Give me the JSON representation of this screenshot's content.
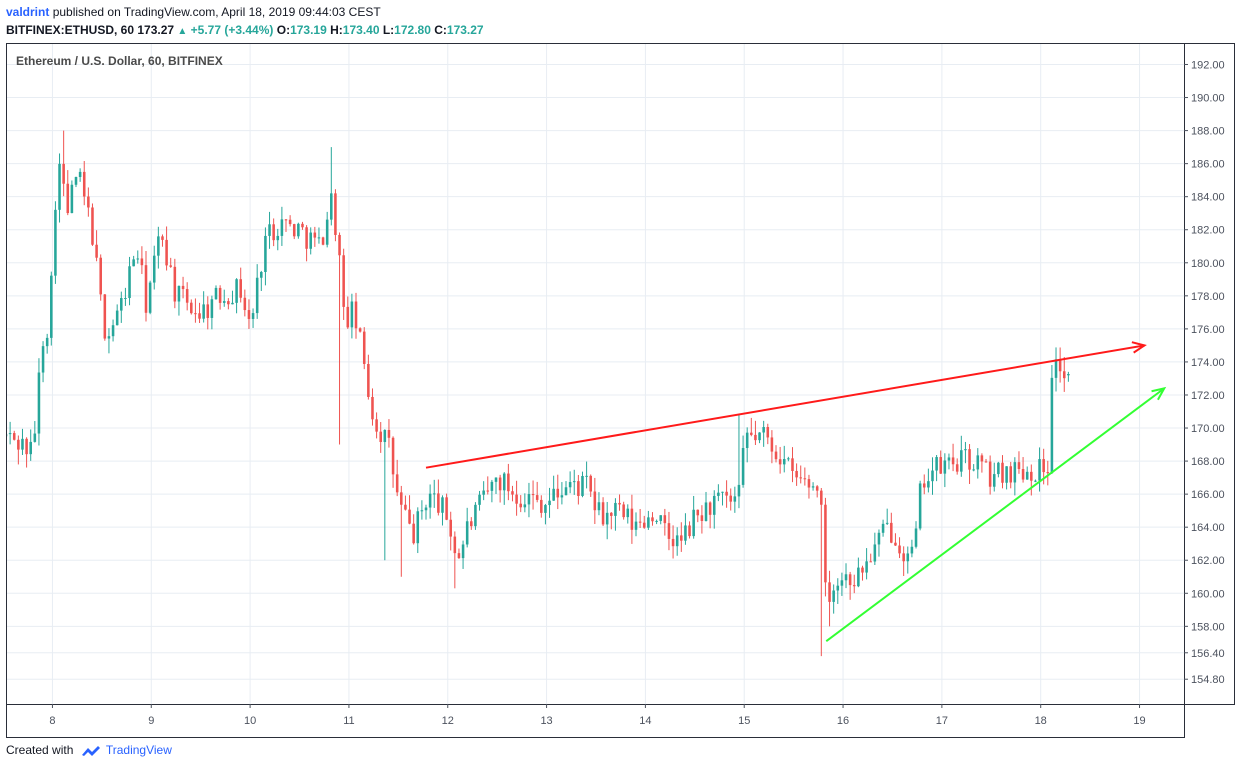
{
  "header": {
    "author": "valdrint",
    "published_text": "published on TradingView.com, April 18, 2019 09:44:03 CEST",
    "symbol": "BITFINEX:ETHUSD, 60",
    "last": "173.27",
    "change": "+5.77 (+3.44%)",
    "o_label": "O:",
    "o_value": "173.19",
    "h_label": "H:",
    "h_value": "173.40",
    "l_label": "L:",
    "l_value": "172.80",
    "c_label": "C:",
    "c_value": "173.27"
  },
  "footer": {
    "created_with": "Created with",
    "brand": "TradingView"
  },
  "colors": {
    "up": "#26a69a",
    "down": "#ef5350",
    "resistance": "#ff1a1a",
    "support": "#33ff33",
    "grid": "#e8edf3"
  },
  "chart_data": {
    "type": "candlestick",
    "title": "Ethereum / U.S. Dollar, 60, BITFINEX",
    "ylim": [
      153.3,
      193.3
    ],
    "xlim": [
      7.53,
      19.45
    ],
    "y_ticks": [
      154.8,
      156.4,
      158.0,
      160.0,
      162.0,
      164.0,
      166.0,
      168.0,
      170.0,
      172.0,
      174.0,
      176.0,
      178.0,
      180.0,
      182.0,
      184.0,
      186.0,
      188.0,
      190.0,
      192.0
    ],
    "x_ticks": [
      {
        "day": 8,
        "label": "8"
      },
      {
        "day": 9,
        "label": "9"
      },
      {
        "day": 10,
        "label": "10"
      },
      {
        "day": 11,
        "label": "11"
      },
      {
        "day": 12,
        "label": "12"
      },
      {
        "day": 13,
        "label": "13"
      },
      {
        "day": 14,
        "label": "14"
      },
      {
        "day": 15,
        "label": "15"
      },
      {
        "day": 16,
        "label": "16"
      },
      {
        "day": 17,
        "label": "17"
      },
      {
        "day": 18,
        "label": "18"
      },
      {
        "day": 19,
        "label": "19"
      }
    ],
    "close_anchors": [
      [
        7.53,
        169.5
      ],
      [
        7.7,
        169.0
      ],
      [
        7.8,
        168.5
      ],
      [
        7.9,
        175.5
      ],
      [
        7.97,
        176.5
      ],
      [
        8.05,
        186.5
      ],
      [
        8.15,
        183.0
      ],
      [
        8.25,
        185.5
      ],
      [
        8.4,
        182.0
      ],
      [
        8.5,
        177.0
      ],
      [
        8.55,
        175.5
      ],
      [
        8.7,
        177.5
      ],
      [
        8.85,
        181.0
      ],
      [
        8.95,
        177.5
      ],
      [
        9.1,
        182.0
      ],
      [
        9.25,
        178.0
      ],
      [
        9.5,
        177.0
      ],
      [
        9.7,
        178.0
      ],
      [
        9.9,
        178.5
      ],
      [
        10.0,
        176.0
      ],
      [
        10.15,
        181.5
      ],
      [
        10.3,
        182.5
      ],
      [
        10.5,
        182.0
      ],
      [
        10.7,
        181.0
      ],
      [
        10.83,
        184.0
      ],
      [
        10.9,
        180.5
      ],
      [
        10.95,
        176.5
      ],
      [
        11.05,
        177.0
      ],
      [
        11.15,
        174.0
      ],
      [
        11.25,
        170.5
      ],
      [
        11.4,
        169.0
      ],
      [
        11.5,
        165.5
      ],
      [
        11.65,
        163.5
      ],
      [
        11.8,
        166.0
      ],
      [
        11.9,
        165.5
      ],
      [
        12.0,
        164.5
      ],
      [
        12.1,
        162.0
      ],
      [
        12.2,
        164.0
      ],
      [
        12.35,
        165.5
      ],
      [
        12.5,
        167.0
      ],
      [
        12.7,
        166.0
      ],
      [
        13.0,
        165.5
      ],
      [
        13.2,
        166.5
      ],
      [
        13.4,
        166.5
      ],
      [
        13.55,
        164.5
      ],
      [
        13.7,
        165.0
      ],
      [
        13.9,
        164.0
      ],
      [
        14.1,
        165.0
      ],
      [
        14.2,
        163.5
      ],
      [
        14.35,
        163.0
      ],
      [
        14.5,
        164.5
      ],
      [
        14.7,
        165.5
      ],
      [
        14.9,
        165.5
      ],
      [
        14.97,
        166.0
      ],
      [
        15.0,
        169.5
      ],
      [
        15.2,
        169.5
      ],
      [
        15.35,
        168.5
      ],
      [
        15.5,
        167.0
      ],
      [
        15.7,
        166.5
      ],
      [
        15.78,
        166.0
      ],
      [
        15.82,
        160.0
      ],
      [
        15.9,
        160.5
      ],
      [
        16.0,
        161.0
      ],
      [
        16.15,
        161.0
      ],
      [
        16.3,
        162.5
      ],
      [
        16.45,
        164.0
      ],
      [
        16.55,
        163.5
      ],
      [
        16.65,
        162.0
      ],
      [
        16.72,
        162.5
      ],
      [
        16.8,
        167.0
      ],
      [
        16.95,
        167.5
      ],
      [
        17.15,
        168.0
      ],
      [
        17.35,
        168.0
      ],
      [
        17.5,
        167.0
      ],
      [
        17.65,
        167.5
      ],
      [
        17.8,
        167.5
      ],
      [
        17.95,
        167.5
      ],
      [
        18.07,
        167.5
      ],
      [
        18.1,
        173.5
      ],
      [
        18.18,
        174.0
      ],
      [
        18.25,
        173.0
      ],
      [
        18.32,
        173.27
      ]
    ],
    "special_wicks": [
      {
        "day": 8.11,
        "high": 188.0
      },
      {
        "day": 10.82,
        "high": 187.0
      },
      {
        "day": 10.92,
        "low": 169.0
      },
      {
        "day": 11.35,
        "low": 162.0
      },
      {
        "day": 11.52,
        "low": 161.0
      },
      {
        "day": 12.09,
        "low": 160.3
      },
      {
        "day": 14.95,
        "high": 170.8
      },
      {
        "day": 15.78,
        "low": 156.2
      },
      {
        "day": 15.86,
        "low": 158.0
      }
    ],
    "trendlines": [
      {
        "name": "resistance",
        "from": [
          11.78,
          167.6
        ],
        "to": [
          19.05,
          175.0
        ],
        "color": "#ff1a1a"
      },
      {
        "name": "support",
        "from": [
          15.83,
          157.1
        ],
        "to": [
          19.25,
          172.4
        ],
        "color": "#33ff33"
      }
    ]
  }
}
